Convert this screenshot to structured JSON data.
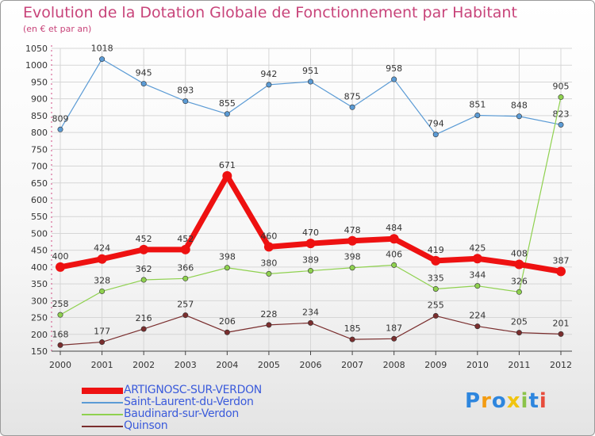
{
  "header": {
    "title": "Evolution de la Dotation Globale de Fonctionnement par Habitant",
    "subtitle": "(en € et par an)"
  },
  "logo": {
    "text": "Proxiti",
    "letters": [
      "P",
      "r",
      "o",
      "x",
      "i",
      "t",
      "i"
    ],
    "colors": [
      "#2e86de",
      "#f39c12",
      "#2e86de",
      "#f1c40f",
      "#8bc34a",
      "#2e86de",
      "#e74c3c"
    ]
  },
  "chart_data": {
    "type": "line",
    "title": "Evolution de la Dotation Globale de Fonctionnement par Habitant",
    "subtitle": "(en € et par an)",
    "x": [
      "2000",
      "2001",
      "2002",
      "2003",
      "2004",
      "2005",
      "2006",
      "2007",
      "2008",
      "2009",
      "2010",
      "2011",
      "2012"
    ],
    "ylim": [
      150,
      1050
    ],
    "yticks": [
      150,
      200,
      250,
      300,
      350,
      400,
      450,
      500,
      550,
      600,
      650,
      700,
      750,
      800,
      850,
      900,
      950,
      1000,
      1050
    ],
    "grid": true,
    "legend_position": "bottom-left",
    "series": [
      {
        "name": "Saint-Laurent-du-Verdon",
        "color": "#5b9bd5",
        "values": [
          809,
          1018,
          945,
          893,
          855,
          942,
          951,
          875,
          958,
          794,
          851,
          848,
          823
        ]
      },
      {
        "name": "Baudinard-sur-Verdon",
        "color": "#8fd14f",
        "values": [
          258,
          328,
          362,
          366,
          398,
          380,
          389,
          398,
          406,
          335,
          344,
          326,
          905
        ]
      },
      {
        "name": "Quinson",
        "color": "#7a2e2e",
        "values": [
          168,
          177,
          216,
          257,
          206,
          228,
          234,
          185,
          187,
          255,
          224,
          205,
          201
        ]
      },
      {
        "name": "ARTIGNOSC-SUR-VERDON",
        "color": "#ee1111",
        "values": [
          400,
          424,
          452,
          452,
          671,
          460,
          470,
          478,
          484,
          419,
          425,
          408,
          387
        ]
      }
    ],
    "legend": [
      {
        "name": "ARTIGNOSC-SUR-VERDON",
        "color": "#ee1111"
      },
      {
        "name": "Saint-Laurent-du-Verdon",
        "color": "#5b9bd5"
      },
      {
        "name": "Baudinard-sur-Verdon",
        "color": "#8fd14f"
      },
      {
        "name": "Quinson",
        "color": "#7a2e2e"
      }
    ]
  }
}
